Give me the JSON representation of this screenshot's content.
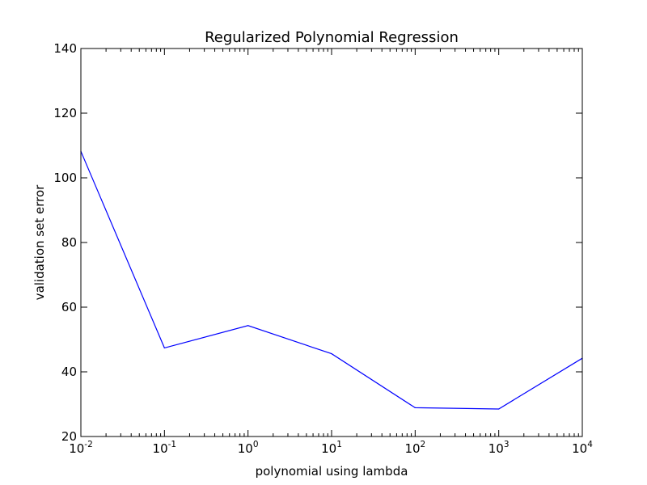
{
  "chart_data": {
    "type": "line",
    "title": "Regularized Polynomial Regression",
    "xlabel": "polynomial using lambda",
    "ylabel": "validation set error",
    "x_scale": "log",
    "xlim": [
      0.01,
      10000
    ],
    "ylim": [
      20,
      140
    ],
    "x_ticks": [
      {
        "base": "10",
        "exp": "-2"
      },
      {
        "base": "10",
        "exp": "-1"
      },
      {
        "base": "10",
        "exp": "0"
      },
      {
        "base": "10",
        "exp": "1"
      },
      {
        "base": "10",
        "exp": "2"
      },
      {
        "base": "10",
        "exp": "3"
      },
      {
        "base": "10",
        "exp": "4"
      }
    ],
    "y_ticks": [
      "20",
      "40",
      "60",
      "80",
      "100",
      "120",
      "140"
    ],
    "grid": false,
    "series": [
      {
        "color": "#0000ff",
        "x": [
          0.01,
          0.1,
          1,
          10,
          100,
          1000,
          10000
        ],
        "y": [
          108.2,
          47.4,
          54.3,
          45.6,
          28.9,
          28.5,
          44.2
        ]
      }
    ]
  }
}
